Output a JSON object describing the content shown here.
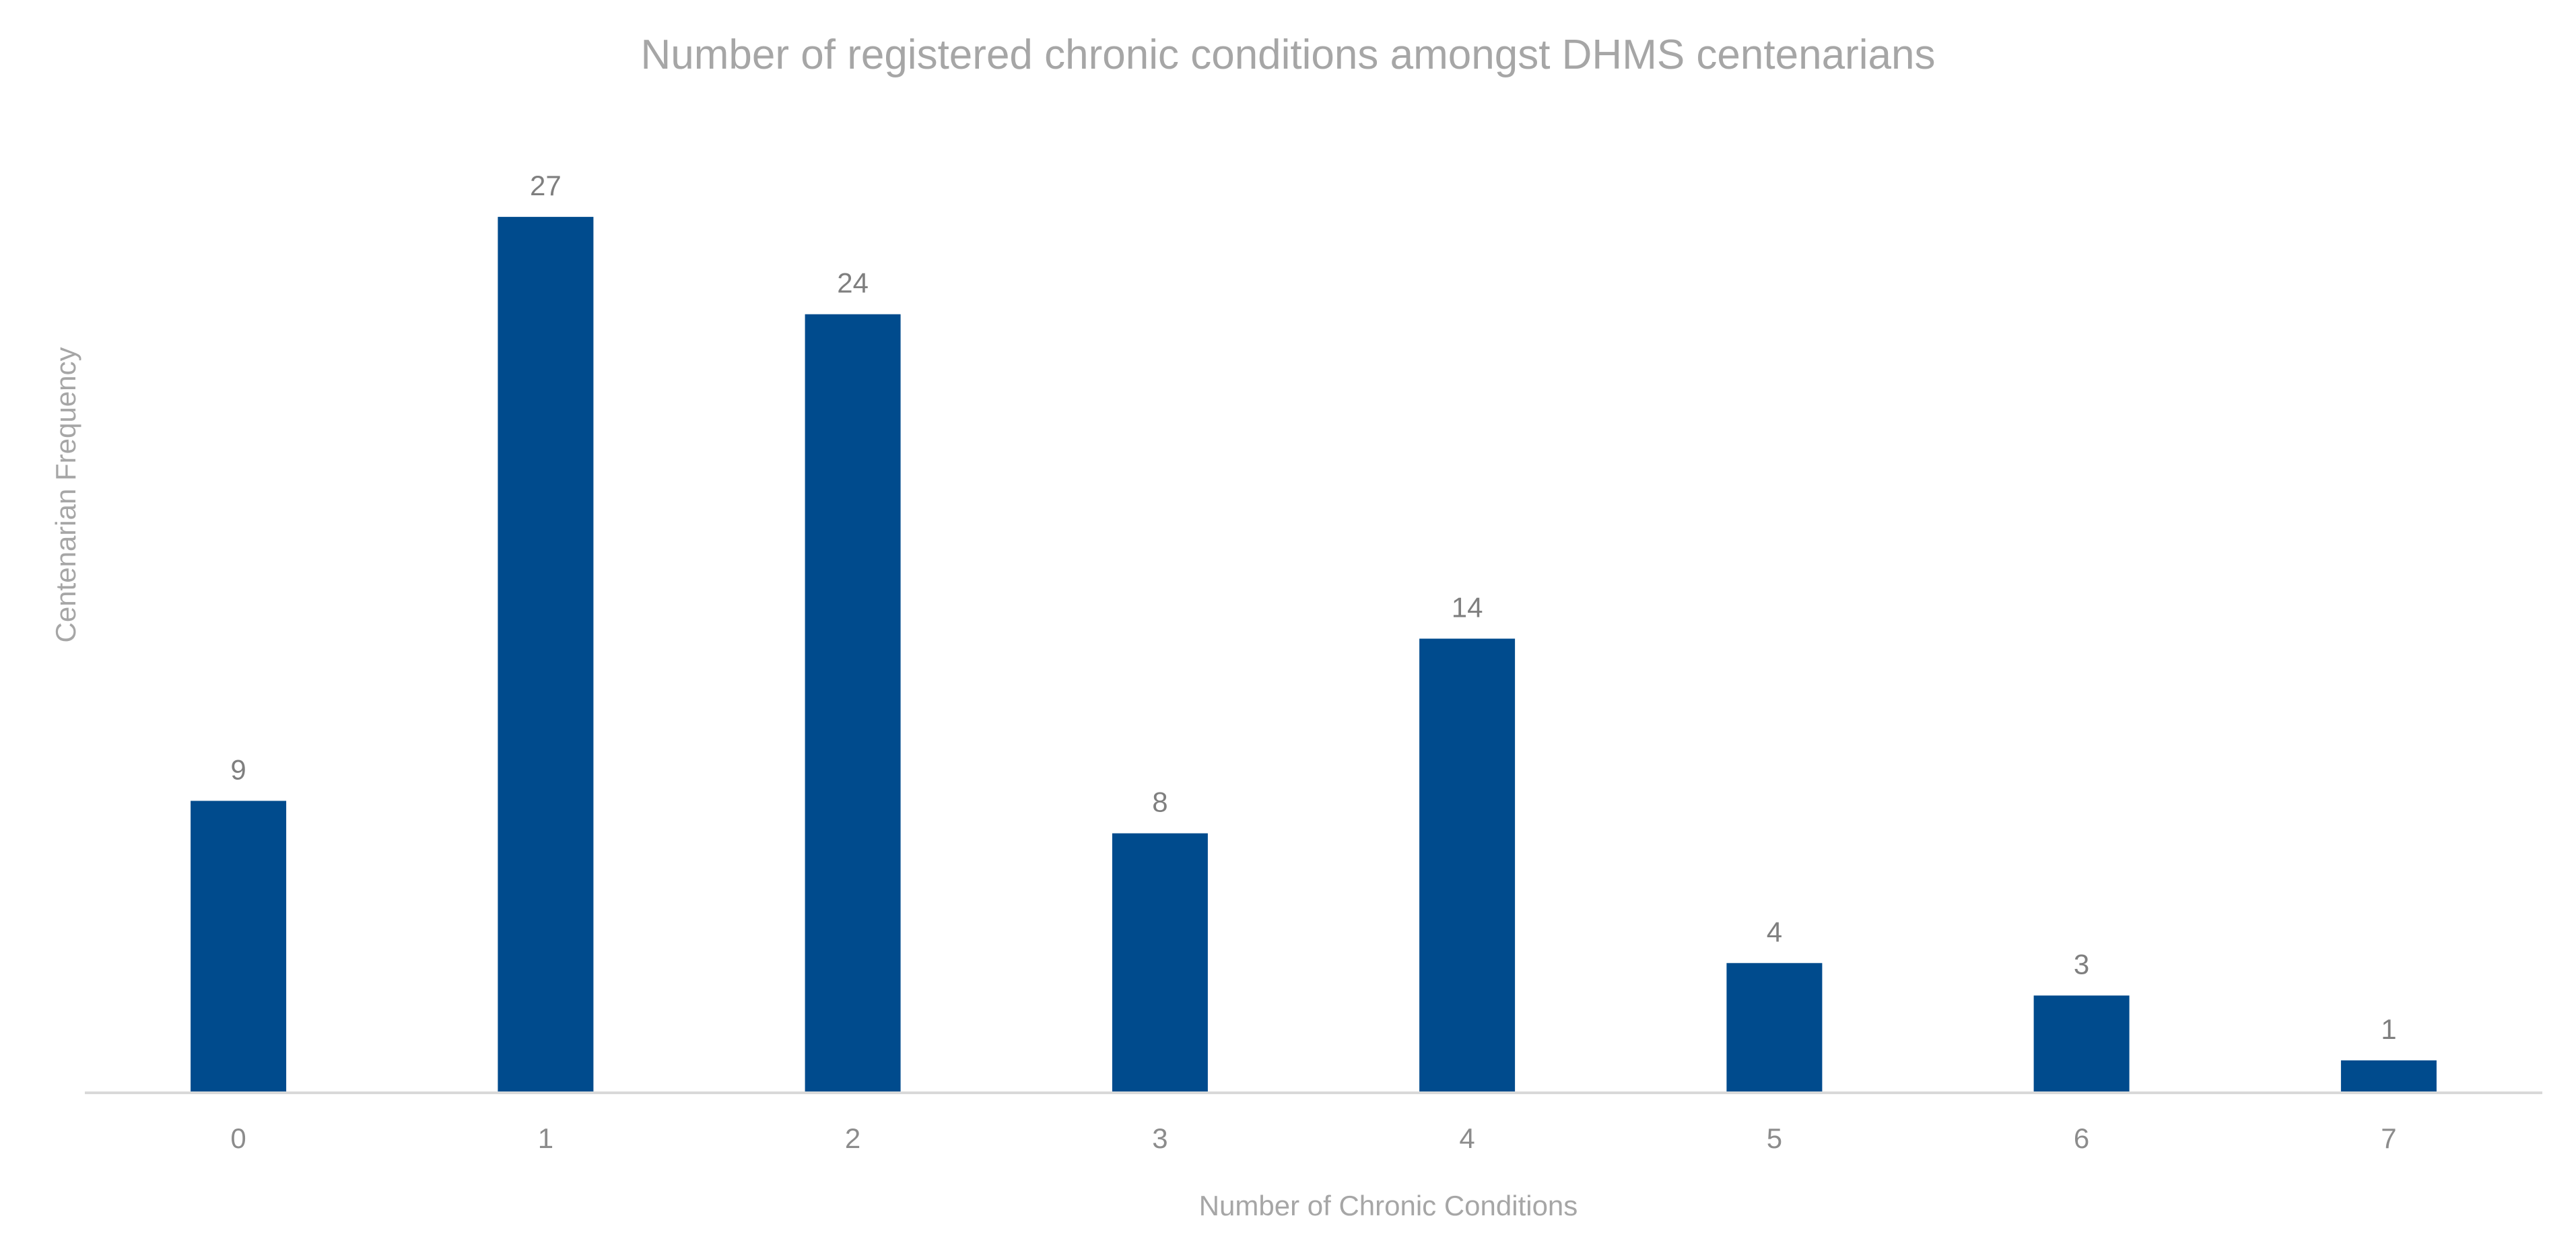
{
  "chart_data": {
    "type": "bar",
    "title": "Number of registered chronic conditions amongst DHMS centenarians",
    "xlabel": "Number of Chronic Conditions",
    "ylabel": "Centenarian Frequency",
    "categories": [
      "0",
      "1",
      "2",
      "3",
      "4",
      "5",
      "6",
      "7"
    ],
    "values": [
      9,
      27,
      24,
      8,
      14,
      4,
      3,
      1
    ],
    "data_labels": [
      "9",
      "27",
      "24",
      "8",
      "14",
      "4",
      "3",
      "1"
    ],
    "ylim": [
      0,
      30
    ],
    "grid": false,
    "legend": "none",
    "bar_color": "#004b8d",
    "axis_color": "#d9d9d9"
  }
}
